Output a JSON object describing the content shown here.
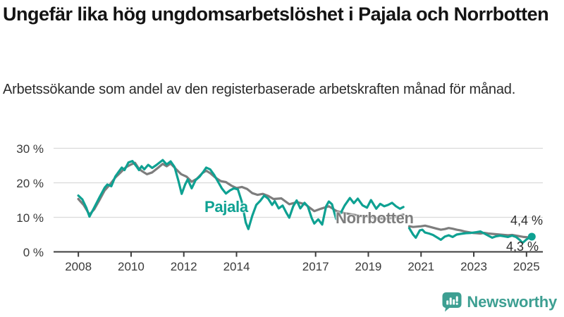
{
  "header": {
    "title": "Ungefär lika hög ungdomsarbetslöshet i Pajala och Norrbotten",
    "subtitle": "Arbetssökande som andel av den registerbaserade arbetskraften månad för månad."
  },
  "chart_data": {
    "type": "line",
    "unit": "%",
    "grid": "horizontal",
    "legend_position": "inline-labels",
    "xlim": [
      2007.06,
      2025.62
    ],
    "ylim": [
      0,
      30
    ],
    "y_ticks": [
      {
        "value": 0,
        "label": "0 %"
      },
      {
        "value": 10,
        "label": "10 %"
      },
      {
        "value": 20,
        "label": "20 %"
      },
      {
        "value": 30,
        "label": "30 %"
      }
    ],
    "x_ticks": [
      {
        "year": 2008,
        "label": "2008"
      },
      {
        "year": 2010,
        "label": "2010"
      },
      {
        "year": 2012,
        "label": "2012"
      },
      {
        "year": 2014,
        "label": "2014"
      },
      {
        "year": 2017,
        "label": "2017"
      },
      {
        "year": 2019,
        "label": "2019"
      },
      {
        "year": 2021,
        "label": "2021"
      },
      {
        "year": 2023,
        "label": "2023"
      },
      {
        "year": 2025,
        "label": "2025"
      }
    ],
    "series": [
      {
        "name": "Norrbotten",
        "color": "#7d7d7d",
        "segments": [
          [
            [
              2008.0,
              15.3
            ],
            [
              2008.2,
              13.6
            ],
            [
              2008.42,
              10.8
            ],
            [
              2008.6,
              12.3
            ],
            [
              2008.8,
              15.0
            ],
            [
              2009.0,
              17.8
            ],
            [
              2009.2,
              19.5
            ],
            [
              2009.4,
              21.5
            ],
            [
              2009.6,
              23.0
            ],
            [
              2009.8,
              24.5
            ],
            [
              2010.0,
              25.3
            ],
            [
              2010.15,
              25.8
            ],
            [
              2010.3,
              24.0
            ],
            [
              2010.45,
              23.2
            ],
            [
              2010.6,
              22.5
            ],
            [
              2010.8,
              23.0
            ],
            [
              2011.0,
              24.2
            ],
            [
              2011.2,
              25.5
            ],
            [
              2011.35,
              24.8
            ],
            [
              2011.5,
              25.6
            ],
            [
              2011.7,
              24.0
            ],
            [
              2011.9,
              22.5
            ],
            [
              2012.1,
              21.8
            ],
            [
              2012.3,
              20.3
            ],
            [
              2012.5,
              21.2
            ],
            [
              2012.7,
              22.8
            ],
            [
              2012.85,
              23.5
            ],
            [
              2013.0,
              22.8
            ],
            [
              2013.2,
              21.5
            ],
            [
              2013.4,
              20.5
            ],
            [
              2013.6,
              20.2
            ],
            [
              2013.8,
              19.2
            ],
            [
              2014.0,
              18.5
            ],
            [
              2014.2,
              18.8
            ],
            [
              2014.4,
              18.2
            ],
            [
              2014.6,
              17.0
            ],
            [
              2014.8,
              16.5
            ],
            [
              2015.0,
              16.8
            ],
            [
              2015.2,
              16.2
            ],
            [
              2015.4,
              15.3
            ],
            [
              2015.7,
              15.5
            ],
            [
              2016.0,
              13.8
            ],
            [
              2016.3,
              14.4
            ],
            [
              2016.6,
              13.8
            ],
            [
              2016.95,
              11.8
            ],
            [
              2017.2,
              12.5
            ],
            [
              2017.5,
              13.2
            ],
            [
              2017.8,
              11.8
            ],
            [
              2018.1,
              11.2
            ],
            [
              2018.4,
              10.8
            ],
            [
              2018.7,
              10.4
            ],
            [
              2019.0,
              10.2
            ],
            [
              2019.3,
              9.8
            ],
            [
              2019.6,
              9.6
            ],
            [
              2019.9,
              9.8
            ],
            [
              2020.1,
              10.3
            ],
            [
              2020.33,
              10.8
            ]
          ],
          [
            [
              2020.55,
              7.4
            ],
            [
              2020.7,
              7.2
            ],
            [
              2020.85,
              7.3
            ],
            [
              2021.0,
              7.4
            ],
            [
              2021.15,
              7.6
            ],
            [
              2021.3,
              7.3
            ],
            [
              2021.45,
              7.0
            ],
            [
              2021.6,
              6.7
            ],
            [
              2021.75,
              6.4
            ],
            [
              2021.9,
              6.6
            ],
            [
              2022.05,
              6.9
            ],
            [
              2022.2,
              6.7
            ],
            [
              2022.35,
              6.4
            ],
            [
              2022.5,
              6.2
            ],
            [
              2022.65,
              5.9
            ],
            [
              2022.8,
              5.7
            ],
            [
              2022.95,
              5.5
            ],
            [
              2023.1,
              5.4
            ],
            [
              2023.25,
              5.3
            ],
            [
              2023.4,
              5.5
            ],
            [
              2023.55,
              5.3
            ],
            [
              2023.7,
              5.2
            ],
            [
              2023.85,
              5.1
            ],
            [
              2024.0,
              5.0
            ],
            [
              2024.15,
              4.9
            ],
            [
              2024.3,
              4.8
            ],
            [
              2024.45,
              4.9
            ],
            [
              2024.6,
              4.7
            ],
            [
              2024.75,
              4.5
            ],
            [
              2024.9,
              4.3
            ],
            [
              2025.05,
              4.2
            ],
            [
              2025.2,
              4.3
            ]
          ]
        ],
        "end_value_label": "4,3 %"
      },
      {
        "name": "Pajala",
        "color": "#0ea192",
        "segments": [
          [
            [
              2008.0,
              16.3
            ],
            [
              2008.15,
              15.2
            ],
            [
              2008.3,
              12.8
            ],
            [
              2008.42,
              10.2
            ],
            [
              2008.6,
              12.8
            ],
            [
              2008.8,
              15.8
            ],
            [
              2009.0,
              18.6
            ],
            [
              2009.1,
              19.5
            ],
            [
              2009.25,
              19.0
            ],
            [
              2009.4,
              21.8
            ],
            [
              2009.55,
              23.4
            ],
            [
              2009.65,
              24.4
            ],
            [
              2009.75,
              23.7
            ],
            [
              2009.9,
              25.9
            ],
            [
              2010.05,
              26.3
            ],
            [
              2010.2,
              24.8
            ],
            [
              2010.3,
              23.7
            ],
            [
              2010.4,
              24.8
            ],
            [
              2010.5,
              23.9
            ],
            [
              2010.65,
              25.2
            ],
            [
              2010.8,
              24.3
            ],
            [
              2010.95,
              25.1
            ],
            [
              2011.1,
              26.0
            ],
            [
              2011.2,
              26.6
            ],
            [
              2011.35,
              25.3
            ],
            [
              2011.5,
              26.2
            ],
            [
              2011.65,
              24.6
            ],
            [
              2011.8,
              20.5
            ],
            [
              2011.92,
              16.8
            ],
            [
              2012.05,
              19.5
            ],
            [
              2012.15,
              21.0
            ],
            [
              2012.3,
              18.4
            ],
            [
              2012.45,
              20.8
            ],
            [
              2012.6,
              21.8
            ],
            [
              2012.75,
              23.3
            ],
            [
              2012.85,
              24.4
            ],
            [
              2013.0,
              23.9
            ],
            [
              2013.15,
              22.3
            ],
            [
              2013.3,
              20.3
            ],
            [
              2013.45,
              18.3
            ],
            [
              2013.6,
              16.9
            ],
            [
              2013.75,
              17.8
            ],
            [
              2013.9,
              18.4
            ],
            [
              2014.05,
              18.1
            ],
            [
              2014.2,
              14.5
            ],
            [
              2014.35,
              8.5
            ],
            [
              2014.45,
              6.6
            ],
            [
              2014.6,
              10.5
            ],
            [
              2014.75,
              13.6
            ],
            [
              2014.9,
              14.8
            ],
            [
              2015.05,
              16.3
            ],
            [
              2015.2,
              15.4
            ],
            [
              2015.35,
              13.6
            ],
            [
              2015.45,
              14.7
            ],
            [
              2015.6,
              12.6
            ],
            [
              2015.75,
              13.4
            ],
            [
              2015.9,
              11.2
            ],
            [
              2016.0,
              9.9
            ],
            [
              2016.15,
              13.2
            ],
            [
              2016.28,
              14.9
            ],
            [
              2016.42,
              12.6
            ],
            [
              2016.58,
              14.2
            ],
            [
              2016.7,
              13.2
            ],
            [
              2016.85,
              9.8
            ],
            [
              2016.95,
              8.2
            ],
            [
              2017.1,
              9.4
            ],
            [
              2017.25,
              7.9
            ],
            [
              2017.4,
              13.2
            ],
            [
              2017.5,
              14.6
            ],
            [
              2017.62,
              13.8
            ],
            [
              2017.78,
              9.5
            ],
            [
              2017.95,
              11.2
            ],
            [
              2018.1,
              13.4
            ],
            [
              2018.3,
              15.6
            ],
            [
              2018.45,
              14.1
            ],
            [
              2018.6,
              15.4
            ],
            [
              2018.78,
              13.5
            ],
            [
              2018.95,
              12.8
            ],
            [
              2019.1,
              15.0
            ],
            [
              2019.3,
              12.5
            ],
            [
              2019.45,
              13.9
            ],
            [
              2019.6,
              13.2
            ],
            [
              2019.75,
              13.6
            ],
            [
              2019.9,
              14.2
            ],
            [
              2020.05,
              13.2
            ],
            [
              2020.2,
              12.5
            ],
            [
              2020.33,
              13.0
            ]
          ],
          [
            [
              2020.55,
              6.9
            ],
            [
              2020.7,
              5.0
            ],
            [
              2020.8,
              4.1
            ],
            [
              2020.95,
              6.2
            ],
            [
              2021.05,
              6.4
            ],
            [
              2021.15,
              5.6
            ],
            [
              2021.3,
              5.3
            ],
            [
              2021.45,
              4.9
            ],
            [
              2021.6,
              4.2
            ],
            [
              2021.75,
              3.5
            ],
            [
              2021.9,
              4.4
            ],
            [
              2022.05,
              4.8
            ],
            [
              2022.2,
              4.3
            ],
            [
              2022.35,
              5.0
            ],
            [
              2022.5,
              5.2
            ],
            [
              2022.7,
              5.4
            ],
            [
              2022.9,
              5.5
            ],
            [
              2023.1,
              5.7
            ],
            [
              2023.25,
              5.9
            ],
            [
              2023.4,
              5.3
            ],
            [
              2023.55,
              4.7
            ],
            [
              2023.7,
              4.1
            ],
            [
              2023.85,
              4.5
            ],
            [
              2024.0,
              4.7
            ],
            [
              2024.15,
              4.5
            ],
            [
              2024.3,
              4.3
            ],
            [
              2024.45,
              4.7
            ],
            [
              2024.6,
              4.3
            ],
            [
              2024.75,
              3.4
            ],
            [
              2024.85,
              2.6
            ],
            [
              2025.0,
              3.6
            ],
            [
              2025.1,
              4.1
            ],
            [
              2025.2,
              4.4
            ]
          ]
        ],
        "end_value_label": "4,4 %",
        "end_dot": {
          "x": 2025.2,
          "y": 4.4
        }
      }
    ],
    "end_labels": [
      {
        "text": "4,4 %",
        "series": "Pajala"
      },
      {
        "text": "4,3 %",
        "series": "Norrbotten"
      }
    ],
    "colors": {
      "pajala": "#0ea192",
      "norrbotten": "#7d7d7d",
      "gridline": "#dadada",
      "axis": "#3c3c3c",
      "axis_text": "#3a3a3a"
    }
  },
  "footer": {
    "brand": "Newsworthy"
  }
}
